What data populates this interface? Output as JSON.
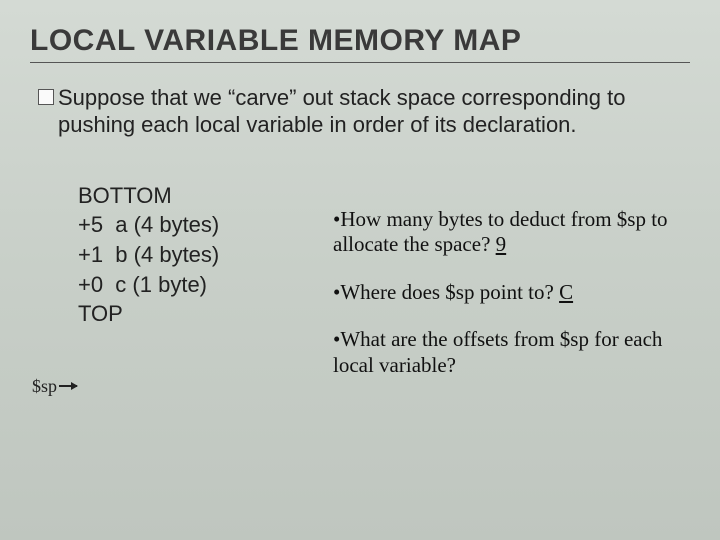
{
  "title": "LOCAL VARIABLE MEMORY MAP",
  "intro": "Suppose that we “carve” out stack space corresponding to pushing each local variable in order of its declaration.",
  "map": {
    "lines": [
      "BOTTOM",
      "+5  a (4 bytes)",
      "+1  b (4 bytes)",
      "+0  c (1 byte)",
      "TOP"
    ]
  },
  "sp_label": "$sp",
  "qa": [
    {
      "q": "How many bytes to deduct from $sp to allocate the space? ",
      "a": "9"
    },
    {
      "q": "Where does $sp point to? ",
      "a": "C"
    },
    {
      "q": "What are the offsets from $sp for each local variable?",
      "a": ""
    }
  ],
  "bullet": "•"
}
